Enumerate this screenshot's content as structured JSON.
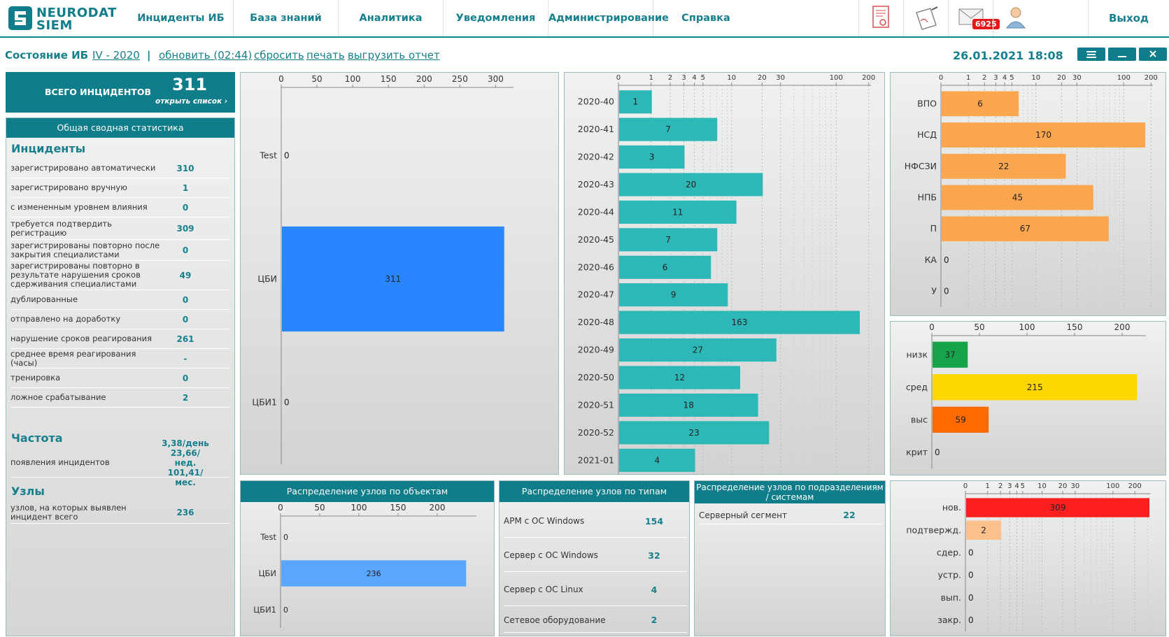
{
  "logo": {
    "line1": "NEURODAT",
    "line2": "SIEM"
  },
  "nav": [
    "Инциденты ИБ",
    "База знаний",
    "Аналитика",
    "Уведомления",
    "Администрирование",
    "Справка"
  ],
  "nav_icons": [
    "certificate-icon",
    "signed-document-icon",
    "mail-icon",
    "user-icon"
  ],
  "mail_count": "6925",
  "logout": "Выход",
  "toolbar": {
    "title": "Состояние ИБ",
    "period": "IV - 2020",
    "sep": "|",
    "refresh": "обновить (02:44)",
    "reset": "сбросить",
    "print": "печать",
    "export": "выгрузить отчет",
    "datetime": "26.01.2021 18:08"
  },
  "window_buttons": [
    "list-icon",
    "minimize-icon",
    "close-icon"
  ],
  "total": {
    "label": "ВСЕГО ИНЦИДЕНТОВ",
    "value": "311",
    "open": "открыть список ›"
  },
  "stats": {
    "header": "Общая сводная статистика",
    "incidents_title": "Инциденты",
    "incidents": [
      {
        "label": "зарегистрировано автоматически",
        "value": "310"
      },
      {
        "label": "зарегистрировано вручную",
        "value": "1"
      },
      {
        "label": "с измененным уровнем влияния",
        "value": "0"
      },
      {
        "label": "требуется подтвердить регистрацию",
        "value": "309"
      },
      {
        "label": "зарегистрированы повторно после закрытия специалистами",
        "value": "0"
      },
      {
        "label": "зарегистрированы повторно в результате нарушения сроков сдерживания специалистами",
        "value": "49"
      },
      {
        "label": "дублированные",
        "value": "0"
      },
      {
        "label": "отправлено на доработку",
        "value": "0"
      },
      {
        "label": "нарушение сроков реагирования",
        "value": "261"
      },
      {
        "label": "среднее время реагирования (часы)",
        "value": "-"
      },
      {
        "label": "тренировка",
        "value": "0"
      },
      {
        "label": "ложное срабатывание",
        "value": "2"
      }
    ],
    "freq_title": "Частота",
    "freq": {
      "label": "появления инцидентов",
      "lines": [
        "3,38/день",
        "23,66/нед.",
        "101,41/мес."
      ]
    },
    "nodes_title": "Узлы",
    "nodes": {
      "label": "узлов, на которых выявлен инцидент всего",
      "value": "236"
    }
  },
  "node_types": {
    "header": "Распределение узлов по типам",
    "rows": [
      {
        "label": "АРМ с ОС Windows",
        "value": "154"
      },
      {
        "label": "Сервер с ОС Windows",
        "value": "32"
      },
      {
        "label": "Сервер с ОС Linux",
        "value": "4"
      },
      {
        "label": "Сетевое оборудование",
        "value": "2"
      }
    ]
  },
  "node_units": {
    "header": "Распределение узлов по подразделениям / системам",
    "rows": [
      {
        "label": "Серверный сегмент",
        "value": "22"
      }
    ]
  },
  "chart_data": [
    {
      "id": "by-object",
      "type": "bar",
      "orientation": "horizontal",
      "scale": "linear",
      "categories": [
        "Test",
        "ЦБИ",
        "ЦБИ1"
      ],
      "values": [
        0,
        311,
        0
      ],
      "ticks": [
        0,
        50,
        100,
        150,
        200,
        250,
        300
      ],
      "xlim": [
        0,
        325
      ],
      "colors": [
        "#2a86ff"
      ]
    },
    {
      "id": "by-week",
      "type": "bar",
      "orientation": "horizontal",
      "scale": "log",
      "categories": [
        "2020-40",
        "2020-41",
        "2020-42",
        "2020-43",
        "2020-44",
        "2020-45",
        "2020-46",
        "2020-47",
        "2020-48",
        "2020-49",
        "2020-50",
        "2020-51",
        "2020-52",
        "2021-01"
      ],
      "values": [
        1,
        7,
        3,
        20,
        11,
        7,
        6,
        9,
        163,
        27,
        12,
        18,
        23,
        4
      ],
      "ticks": [
        0,
        1,
        2,
        3,
        4,
        5,
        10,
        20,
        30,
        100,
        200
      ],
      "xlim": [
        0,
        210
      ],
      "colors": [
        "#2db8b7"
      ]
    },
    {
      "id": "by-type",
      "type": "bar",
      "orientation": "horizontal",
      "scale": "log",
      "categories": [
        "ВПО",
        "НСД",
        "НФСЗИ",
        "НПБ",
        "П",
        "КА",
        "У"
      ],
      "values": [
        6,
        170,
        22,
        45,
        67,
        0,
        0
      ],
      "ticks": [
        0,
        1,
        2,
        3,
        4,
        5,
        10,
        20,
        30,
        100,
        200
      ],
      "xlim": [
        0,
        210
      ],
      "colors": [
        "#fda650"
      ]
    },
    {
      "id": "by-level",
      "type": "bar",
      "orientation": "horizontal",
      "scale": "linear",
      "categories": [
        "низк",
        "сред",
        "выс",
        "крит"
      ],
      "values": [
        37,
        215,
        59,
        0
      ],
      "ticks": [
        0,
        50,
        100,
        150,
        200
      ],
      "xlim": [
        0,
        225
      ],
      "colors": [
        "#17a34a",
        "#ffd700",
        "#ff6a00",
        "#999999"
      ]
    },
    {
      "id": "by-status",
      "type": "bar",
      "orientation": "horizontal",
      "scale": "log",
      "categories": [
        "нов.",
        "подтвержд.",
        "сдер.",
        "устр.",
        "вып.",
        "закр."
      ],
      "values": [
        309,
        2,
        0,
        0,
        0,
        0
      ],
      "ticks": [
        0,
        1,
        2,
        3,
        4,
        5,
        10,
        20,
        30,
        100,
        200
      ],
      "xlim": [
        0,
        330
      ],
      "colors": [
        "#ff1f1f",
        "#fcc18c",
        "#999999",
        "#999999",
        "#999999",
        "#999999"
      ]
    },
    {
      "id": "nodes-by-object",
      "type": "bar",
      "orientation": "horizontal",
      "scale": "linear",
      "title": "Распределение узлов по объектам",
      "categories": [
        "Test",
        "ЦБИ",
        "ЦБИ1"
      ],
      "values": [
        0,
        236,
        0
      ],
      "ticks": [
        0,
        50,
        100,
        150,
        200
      ],
      "xlim": [
        0,
        250
      ],
      "colors": [
        "#5aa6ff"
      ]
    }
  ]
}
